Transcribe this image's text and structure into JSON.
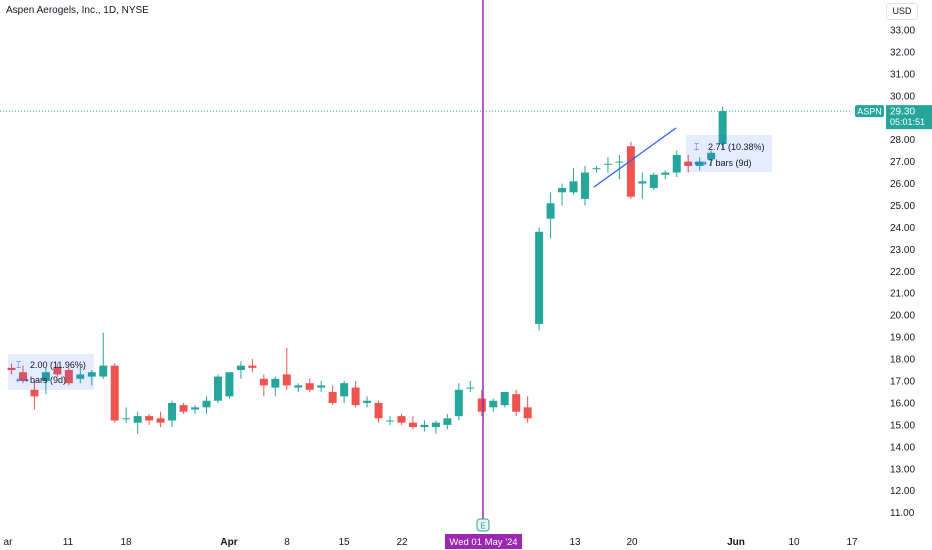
{
  "header": {
    "title": "Aspen Aerogels, Inc., 1D, NYSE",
    "currency": "USD"
  },
  "colors": {
    "up": "#26a69a",
    "down": "#ef5350",
    "event_line": "#9c27b0",
    "price_line": "#26a69a",
    "trend_line": "#2962ff"
  },
  "price_tag": {
    "symbol": "ASPN",
    "price": "29.30",
    "countdown": "05:01:51",
    "value": 29.3
  },
  "crosshair": {
    "date_label": "Wed 01 May '24",
    "event_marker": "E"
  },
  "measures": [
    {
      "change": "2.00 (11.96%)",
      "range": "bars (9d)",
      "range_icon": "range-icon"
    },
    {
      "change": "2.71 (10.38%)",
      "range": "7 bars (9d)",
      "range_icon": "range-icon"
    }
  ],
  "chart_data": {
    "type": "candlestick",
    "y_ticks": [
      "11.00",
      "12.00",
      "13.00",
      "14.00",
      "15.00",
      "16.00",
      "17.00",
      "18.00",
      "19.00",
      "20.00",
      "21.00",
      "22.00",
      "23.00",
      "24.00",
      "25.00",
      "26.00",
      "27.00",
      "28.00",
      "29.00",
      "30.00",
      "31.00",
      "32.00",
      "33.00"
    ],
    "x_ticks": [
      "ar",
      "11",
      "18",
      "Apr",
      "8",
      "15",
      "22",
      "13",
      "20",
      "Jun",
      "10",
      "17"
    ],
    "ylim": [
      10.3,
      34.0
    ],
    "candles": [
      {
        "o": 17.6,
        "h": 17.8,
        "l": 17.3,
        "c": 17.5
      },
      {
        "o": 17.4,
        "h": 17.7,
        "l": 16.9,
        "c": 17.0
      },
      {
        "o": 16.6,
        "h": 17.0,
        "l": 15.7,
        "c": 16.3
      },
      {
        "o": 17.0,
        "h": 17.6,
        "l": 16.4,
        "c": 17.4
      },
      {
        "o": 17.6,
        "h": 17.8,
        "l": 17.2,
        "c": 17.3
      },
      {
        "o": 17.5,
        "h": 17.6,
        "l": 16.8,
        "c": 16.9
      },
      {
        "o": 17.1,
        "h": 17.6,
        "l": 16.9,
        "c": 17.3
      },
      {
        "o": 17.2,
        "h": 17.5,
        "l": 16.8,
        "c": 17.4
      },
      {
        "o": 17.2,
        "h": 19.2,
        "l": 17.1,
        "c": 17.7
      },
      {
        "o": 17.7,
        "h": 17.8,
        "l": 15.1,
        "c": 15.2
      },
      {
        "o": 15.3,
        "h": 15.8,
        "l": 15.1,
        "c": 15.3
      },
      {
        "o": 15.1,
        "h": 15.6,
        "l": 14.6,
        "c": 15.4
      },
      {
        "o": 15.4,
        "h": 15.5,
        "l": 15.0,
        "c": 15.2
      },
      {
        "o": 15.3,
        "h": 15.6,
        "l": 14.9,
        "c": 15.1
      },
      {
        "o": 15.2,
        "h": 16.1,
        "l": 14.9,
        "c": 16.0
      },
      {
        "o": 15.9,
        "h": 16.0,
        "l": 15.5,
        "c": 15.6
      },
      {
        "o": 15.7,
        "h": 15.9,
        "l": 15.5,
        "c": 15.8
      },
      {
        "o": 15.8,
        "h": 16.3,
        "l": 15.5,
        "c": 16.1
      },
      {
        "o": 16.1,
        "h": 17.3,
        "l": 16.0,
        "c": 17.2
      },
      {
        "o": 16.3,
        "h": 17.4,
        "l": 16.2,
        "c": 17.4
      },
      {
        "o": 17.5,
        "h": 17.9,
        "l": 17.1,
        "c": 17.7
      },
      {
        "o": 17.7,
        "h": 18.0,
        "l": 17.4,
        "c": 17.6
      },
      {
        "o": 17.1,
        "h": 17.3,
        "l": 16.3,
        "c": 16.8
      },
      {
        "o": 16.7,
        "h": 17.2,
        "l": 16.3,
        "c": 17.1
      },
      {
        "o": 17.3,
        "h": 18.5,
        "l": 16.6,
        "c": 16.8
      },
      {
        "o": 16.7,
        "h": 16.9,
        "l": 16.5,
        "c": 16.8
      },
      {
        "o": 16.9,
        "h": 17.1,
        "l": 16.5,
        "c": 16.6
      },
      {
        "o": 16.7,
        "h": 17.0,
        "l": 16.5,
        "c": 16.8
      },
      {
        "o": 16.5,
        "h": 16.8,
        "l": 15.9,
        "c": 16.0
      },
      {
        "o": 16.3,
        "h": 17.0,
        "l": 16.0,
        "c": 16.9
      },
      {
        "o": 16.7,
        "h": 17.0,
        "l": 15.8,
        "c": 15.9
      },
      {
        "o": 16.0,
        "h": 16.3,
        "l": 15.8,
        "c": 16.1
      },
      {
        "o": 16.0,
        "h": 16.1,
        "l": 15.1,
        "c": 15.3
      },
      {
        "o": 15.2,
        "h": 15.4,
        "l": 15.0,
        "c": 15.2
      },
      {
        "o": 15.4,
        "h": 15.5,
        "l": 15.0,
        "c": 15.1
      },
      {
        "o": 15.1,
        "h": 15.4,
        "l": 14.8,
        "c": 14.9
      },
      {
        "o": 14.9,
        "h": 15.2,
        "l": 14.7,
        "c": 15.0
      },
      {
        "o": 14.9,
        "h": 15.2,
        "l": 14.6,
        "c": 15.1
      },
      {
        "o": 15.0,
        "h": 15.5,
        "l": 14.8,
        "c": 15.3
      },
      {
        "o": 15.4,
        "h": 16.9,
        "l": 15.2,
        "c": 16.6
      },
      {
        "o": 16.7,
        "h": 17.0,
        "l": 16.5,
        "c": 16.7
      },
      {
        "o": 16.2,
        "h": 16.6,
        "l": 15.4,
        "c": 15.6
      },
      {
        "o": 15.8,
        "h": 16.2,
        "l": 15.6,
        "c": 16.1
      },
      {
        "o": 15.9,
        "h": 16.5,
        "l": 15.8,
        "c": 16.5
      },
      {
        "o": 16.4,
        "h": 16.6,
        "l": 15.4,
        "c": 15.6
      },
      {
        "o": 15.8,
        "h": 16.3,
        "l": 15.1,
        "c": 15.3
      },
      {
        "o": 19.6,
        "h": 24.0,
        "l": 19.3,
        "c": 23.8
      },
      {
        "o": 24.4,
        "h": 25.6,
        "l": 23.5,
        "c": 25.1
      },
      {
        "o": 25.6,
        "h": 26.0,
        "l": 25.0,
        "c": 25.8
      },
      {
        "o": 25.6,
        "h": 26.7,
        "l": 25.5,
        "c": 26.1
      },
      {
        "o": 25.3,
        "h": 26.8,
        "l": 25.0,
        "c": 26.5
      },
      {
        "o": 26.7,
        "h": 26.8,
        "l": 26.5,
        "c": 26.7
      },
      {
        "o": 26.9,
        "h": 27.2,
        "l": 26.5,
        "c": 26.9
      },
      {
        "o": 27.0,
        "h": 27.3,
        "l": 26.2,
        "c": 27.0
      },
      {
        "o": 27.7,
        "h": 27.9,
        "l": 25.3,
        "c": 25.4
      },
      {
        "o": 26.0,
        "h": 26.5,
        "l": 25.3,
        "c": 26.1
      },
      {
        "o": 25.8,
        "h": 26.5,
        "l": 25.7,
        "c": 26.4
      },
      {
        "o": 26.4,
        "h": 26.6,
        "l": 26.2,
        "c": 26.5
      },
      {
        "o": 26.5,
        "h": 27.5,
        "l": 26.3,
        "c": 27.3
      },
      {
        "o": 27.0,
        "h": 27.3,
        "l": 26.5,
        "c": 26.8
      },
      {
        "o": 26.8,
        "h": 27.2,
        "l": 26.6,
        "c": 27.0
      },
      {
        "o": 27.1,
        "h": 27.5,
        "l": 26.8,
        "c": 27.4
      },
      {
        "o": 27.8,
        "h": 29.5,
        "l": 27.6,
        "c": 29.3
      }
    ]
  }
}
